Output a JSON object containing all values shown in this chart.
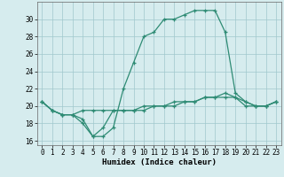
{
  "xlabel": "Humidex (Indice chaleur)",
  "x": [
    0,
    1,
    2,
    3,
    4,
    5,
    6,
    7,
    8,
    9,
    10,
    11,
    12,
    13,
    14,
    15,
    16,
    17,
    18,
    19,
    20,
    21,
    22,
    23
  ],
  "line1": [
    20.5,
    19.5,
    19.0,
    19.0,
    18.0,
    16.5,
    16.5,
    17.5,
    22.0,
    25.0,
    28.0,
    28.5,
    30.0,
    30.0,
    30.5,
    31.0,
    31.0,
    31.0,
    28.5,
    21.5,
    20.5,
    20.0,
    20.0,
    20.5
  ],
  "line2": [
    20.5,
    19.5,
    19.0,
    19.0,
    18.5,
    16.5,
    17.5,
    19.5,
    19.5,
    19.5,
    19.5,
    20.0,
    20.0,
    20.0,
    20.5,
    20.5,
    21.0,
    21.0,
    21.5,
    21.0,
    20.0,
    20.0,
    20.0,
    20.5
  ],
  "line3": [
    20.5,
    19.5,
    19.0,
    19.0,
    19.5,
    19.5,
    19.5,
    19.5,
    19.5,
    19.5,
    20.0,
    20.0,
    20.0,
    20.5,
    20.5,
    20.5,
    21.0,
    21.0,
    21.0,
    21.0,
    20.5,
    20.0,
    20.0,
    20.5
  ],
  "line_color": "#2e8b74",
  "bg_color": "#d6ecee",
  "grid_color": "#a0c8cc",
  "ylim_min": 15.5,
  "ylim_max": 32,
  "yticks": [
    16,
    18,
    20,
    22,
    24,
    26,
    28,
    30
  ],
  "xticks": [
    0,
    1,
    2,
    3,
    4,
    5,
    6,
    7,
    8,
    9,
    10,
    11,
    12,
    13,
    14,
    15,
    16,
    17,
    18,
    19,
    20,
    21,
    22,
    23
  ],
  "marker": "+",
  "markersize": 3.5,
  "linewidth": 0.9,
  "tick_fontsize": 5.5,
  "xlabel_fontsize": 6.5,
  "xlabel_bold": true
}
